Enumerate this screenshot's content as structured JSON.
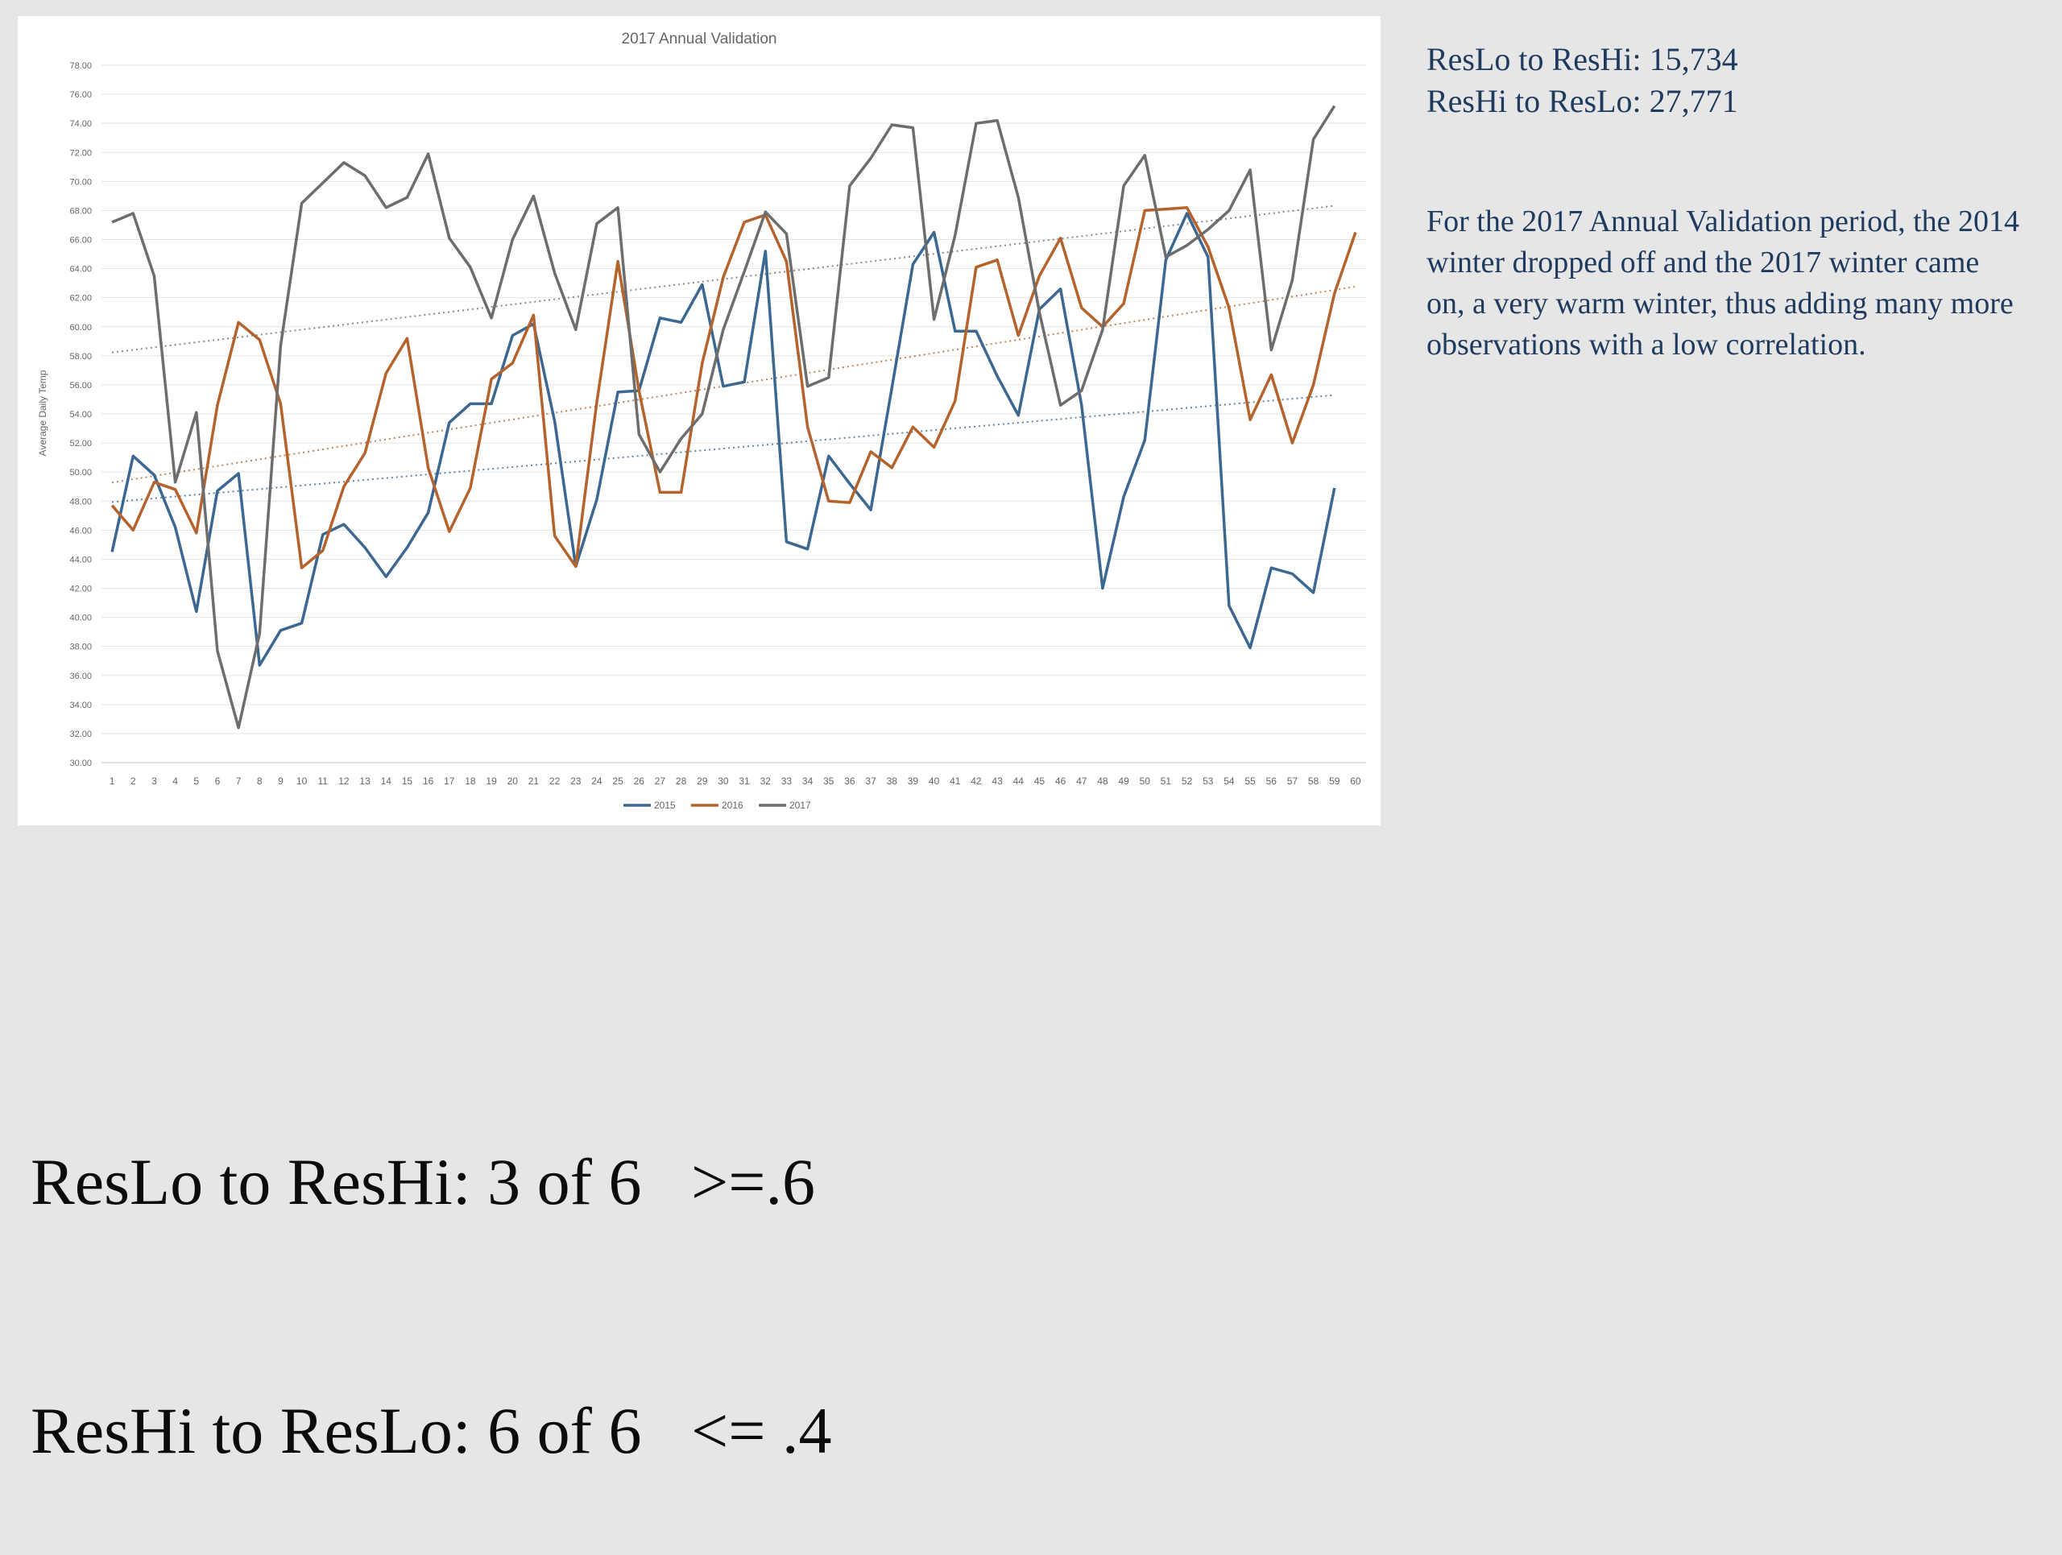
{
  "colors": {
    "background": "#e6e6e6",
    "s2015": "#3b6791",
    "s2016": "#b5632d",
    "s2017": "#6d6d6d",
    "stats_text": "#1f3a5f"
  },
  "stats": [
    "ResLo to ResHi: 15,734",
    "ResHi to ResLo: 27,771"
  ],
  "note": "For the 2017 Annual Validation period, the 2014 winter dropped off and the 2017 winter came on, a very warm winter, thus adding many more observations with a low correlation.",
  "bottom_lines": [
    "ResLo to ResHi: 3 of 6   >=.6",
    "ResHi to ResLo: 6 of 6   <= .4"
  ],
  "chart_data": {
    "type": "line",
    "title": "2017 Annual Validation",
    "ylabel": "Average Daily Temp",
    "xlabel": "",
    "ylim": [
      30,
      78
    ],
    "y_ticks": [
      "30.00",
      "32.00",
      "34.00",
      "36.00",
      "38.00",
      "40.00",
      "42.00",
      "44.00",
      "46.00",
      "48.00",
      "50.00",
      "52.00",
      "54.00",
      "56.00",
      "58.00",
      "60.00",
      "62.00",
      "64.00",
      "66.00",
      "68.00",
      "70.00",
      "72.00",
      "74.00",
      "76.00",
      "78.00"
    ],
    "x": [
      1,
      2,
      3,
      4,
      5,
      6,
      7,
      8,
      9,
      10,
      11,
      12,
      13,
      14,
      15,
      16,
      17,
      18,
      19,
      20,
      21,
      22,
      23,
      24,
      25,
      26,
      27,
      28,
      29,
      30,
      31,
      32,
      33,
      34,
      35,
      36,
      37,
      38,
      39,
      40,
      41,
      42,
      43,
      44,
      45,
      46,
      47,
      48,
      49,
      50,
      51,
      52,
      53,
      54,
      55,
      56,
      57,
      58,
      59,
      60
    ],
    "grid": true,
    "legend_position": "bottom",
    "trendlines": true,
    "series": [
      {
        "name": "2015",
        "color": "#3b6791",
        "values": [
          44.5,
          51.1,
          49.8,
          46.2,
          40.4,
          48.7,
          49.9,
          36.7,
          39.1,
          39.6,
          45.7,
          46.4,
          44.8,
          42.8,
          44.8,
          47.2,
          53.4,
          54.7,
          54.7,
          59.4,
          60.2,
          53.5,
          43.5,
          48.1,
          55.5,
          55.6,
          60.6,
          60.3,
          62.9,
          55.9,
          56.2,
          65.2,
          45.2,
          44.7,
          51.1,
          49.2,
          47.4,
          55.8,
          64.3,
          66.5,
          59.7,
          59.7,
          56.6,
          53.9,
          61.2,
          62.6,
          54.6,
          42.0,
          48.3,
          52.2,
          64.6,
          67.8,
          64.8,
          40.8,
          37.9,
          43.4,
          43.0,
          41.7,
          48.9,
          null
        ]
      },
      {
        "name": "2016",
        "color": "#b5632d",
        "values": [
          47.7,
          46.0,
          49.3,
          48.8,
          45.8,
          54.6,
          60.3,
          59.1,
          54.7,
          43.4,
          44.6,
          49.0,
          51.3,
          56.8,
          59.2,
          50.3,
          45.9,
          48.9,
          56.4,
          57.5,
          60.8,
          45.6,
          43.5,
          54.8,
          64.5,
          55.6,
          48.6,
          48.6,
          57.5,
          63.4,
          67.2,
          67.7,
          64.5,
          53.1,
          48.0,
          47.9,
          51.4,
          50.3,
          53.1,
          51.7,
          54.9,
          64.1,
          64.6,
          59.4,
          63.5,
          66.1,
          61.3,
          60.0,
          61.6,
          68.0,
          68.1,
          68.2,
          65.5,
          61.3,
          53.6,
          56.7,
          52.0,
          56.0,
          62.3,
          66.5
        ]
      },
      {
        "name": "2017",
        "color": "#6d6d6d",
        "values": [
          67.2,
          67.8,
          63.5,
          49.3,
          54.1,
          37.7,
          32.4,
          38.9,
          58.7,
          68.5,
          69.9,
          71.3,
          70.4,
          68.2,
          68.9,
          71.9,
          66.1,
          64.1,
          60.6,
          66.0,
          69.0,
          63.7,
          59.8,
          67.1,
          68.2,
          52.6,
          50.0,
          52.3,
          54.0,
          59.8,
          63.8,
          67.9,
          66.4,
          55.9,
          56.5,
          69.7,
          71.6,
          73.9,
          73.7,
          60.5,
          66.3,
          74.0,
          74.2,
          68.9,
          61.0,
          54.6,
          55.6,
          59.8,
          69.7,
          71.8,
          64.8,
          65.6,
          66.7,
          68.0,
          70.8,
          58.4,
          63.2,
          72.9,
          75.2,
          null
        ]
      }
    ]
  }
}
